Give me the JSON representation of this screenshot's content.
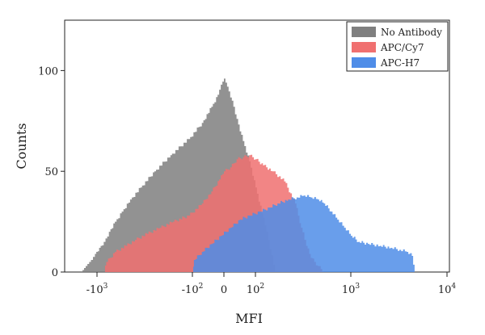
{
  "chart_data": {
    "type": "area",
    "title": "",
    "xlabel": "MFI",
    "ylabel": "Counts",
    "x_scale": "biexponential",
    "xlim": [
      -2000,
      10000
    ],
    "ylim": [
      0,
      125
    ],
    "grid": false,
    "legend_position": "top-right",
    "x_ticks": [
      {
        "value": -1000,
        "base": "-10",
        "exp": "3"
      },
      {
        "value": -100,
        "base": "-10",
        "exp": "2"
      },
      {
        "value": 0,
        "base": "0",
        "exp": ""
      },
      {
        "value": 100,
        "base": "10",
        "exp": "2"
      },
      {
        "value": 1000,
        "base": "10",
        "exp": "3"
      },
      {
        "value": 10000,
        "base": "10",
        "exp": "4"
      }
    ],
    "y_ticks": [
      0,
      50,
      100
    ],
    "series": [
      {
        "name": "No Antibody",
        "color": "#7f7f7f",
        "x": [
          -1450,
          -1350,
          -1250,
          -1150,
          -1050,
          -950,
          -850,
          -750,
          -650,
          -550,
          -450,
          -350,
          -250,
          -170,
          -110,
          -70,
          -40,
          -20,
          -10,
          0,
          10,
          25,
          40,
          60,
          80,
          100,
          130,
          160
        ],
        "y": [
          0,
          2,
          4,
          6,
          9,
          12,
          15,
          20,
          25,
          30,
          36,
          42,
          50,
          58,
          66,
          74,
          82,
          88,
          93,
          96,
          92,
          85,
          76,
          65,
          55,
          42,
          20,
          0
        ]
      },
      {
        "name": "APC/Cy7",
        "color": "#f07070",
        "x": [
          -850,
          -800,
          -650,
          -500,
          -400,
          -300,
          -220,
          -160,
          -110,
          -70,
          -40,
          -15,
          0,
          20,
          40,
          60,
          80,
          100,
          120,
          150,
          200,
          260,
          300,
          340,
          380,
          450,
          520
        ],
        "y": [
          0,
          5,
          10,
          13,
          16,
          19,
          22,
          25,
          28,
          34,
          40,
          46,
          50,
          52,
          56,
          57,
          58,
          56,
          53,
          50,
          45,
          34,
          22,
          13,
          7,
          3,
          0
        ]
      },
      {
        "name": "APC-H7",
        "color": "#4f8de8",
        "x": [
          -100,
          -95,
          -70,
          -40,
          -10,
          20,
          50,
          80,
          110,
          140,
          170,
          220,
          270,
          320,
          380,
          450,
          520,
          620,
          720,
          850,
          1000,
          1200,
          1500,
          2000,
          2600,
          3200,
          3800,
          4300,
          4600
        ],
        "y": [
          0,
          6,
          10,
          14,
          18,
          22,
          26,
          28,
          30,
          32,
          34,
          36,
          37,
          38,
          37,
          36,
          34,
          30,
          26,
          22,
          18,
          15,
          14,
          13,
          12,
          11,
          10,
          8,
          0
        ]
      }
    ]
  }
}
